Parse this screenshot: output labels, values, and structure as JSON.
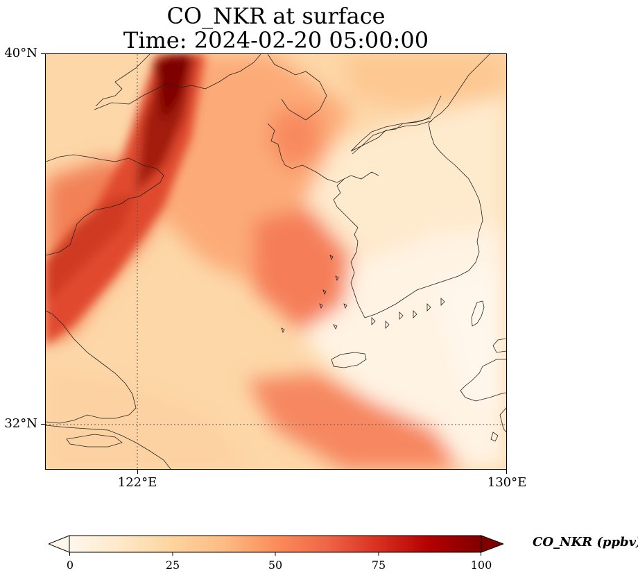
{
  "title": {
    "line1": "CO_NKR at surface",
    "line2": "Time: 2024-02-20 05:00:00"
  },
  "axes": {
    "lat_labels": [
      "40°N",
      "32°N"
    ],
    "lon_labels": [
      "122°E",
      "130°E"
    ],
    "lat_range": [
      31,
      40
    ],
    "lon_range": [
      120,
      130
    ],
    "gridlines": {
      "lat": [
        32
      ],
      "lon": [
        122
      ],
      "style": "dotted"
    }
  },
  "colorbar": {
    "label": "CO_NKR (ppbv)",
    "ticks": [
      "0",
      "25",
      "50",
      "75",
      "100"
    ],
    "range": [
      0,
      100
    ],
    "colormap": "OrRd",
    "extend": "both",
    "colors": [
      "#fff7ec",
      "#fee8c8",
      "#fdd49e",
      "#fdbb84",
      "#fc8d59",
      "#ef6548",
      "#d7301f",
      "#b30000",
      "#7f0000"
    ]
  }
}
